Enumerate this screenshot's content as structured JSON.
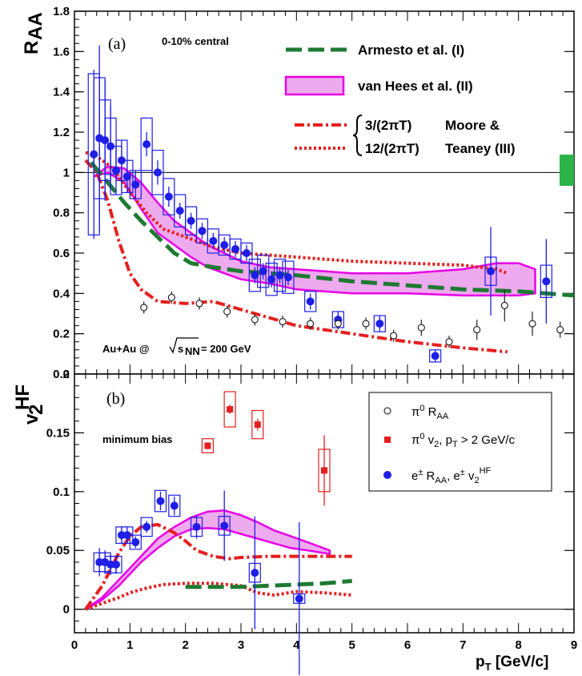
{
  "chart_data": [
    {
      "type": "scatter",
      "panel_label": "(a)",
      "ylabel": "R",
      "ylabel_sub": "AA",
      "ylim": [
        0,
        1.8
      ],
      "yticks": [
        "0",
        "0.2",
        "0.4",
        "0.6",
        "0.8",
        "1",
        "1.2",
        "1.4",
        "1.6",
        "1.8"
      ],
      "xlim": [
        0,
        9
      ],
      "annotation_centrality": "0-10% central",
      "annotation_system": "Au+Au @",
      "annotation_energy": "= 200 GeV",
      "annotation_sqrt_s": "s",
      "annotation_sqrt_sub": "NN",
      "reference_line": 1,
      "legend": {
        "armesto": "Armesto et al. (I)",
        "vanhees": "van Hees et al. (II)",
        "moore_a": "3/(2πT)",
        "moore_b": "12/(2πT)",
        "moore_name_a": "Moore &",
        "moore_name_b": "Teaney (III)"
      },
      "series": [
        {
          "name": "e± RAA",
          "marker": "filled-circle",
          "color": "#1e1ee6",
          "points": [
            {
              "x": 0.35,
              "y": 1.09,
              "err": 0.42,
              "sys": 0.4
            },
            {
              "x": 0.45,
              "y": 1.17,
              "err": 0.46,
              "sys": 0.3
            },
            {
              "x": 0.55,
              "y": 1.16,
              "err": 0.3,
              "sys": 0.2
            },
            {
              "x": 0.65,
              "y": 1.13,
              "err": 0.2,
              "sys": 0.14
            },
            {
              "x": 0.75,
              "y": 1.01,
              "err": 0.12,
              "sys": 0.12
            },
            {
              "x": 0.85,
              "y": 1.06,
              "err": 0.1,
              "sys": 0.1
            },
            {
              "x": 0.95,
              "y": 0.98,
              "err": 0.08,
              "sys": 0.08
            },
            {
              "x": 1.1,
              "y": 0.94,
              "err": 0.07,
              "sys": 0.07
            },
            {
              "x": 1.3,
              "y": 1.14,
              "err": 0.06,
              "sys": 0.13
            },
            {
              "x": 1.5,
              "y": 1.0,
              "err": 0.06,
              "sys": 0.11
            },
            {
              "x": 1.7,
              "y": 0.88,
              "err": 0.05,
              "sys": 0.09
            },
            {
              "x": 1.9,
              "y": 0.81,
              "err": 0.04,
              "sys": 0.08
            },
            {
              "x": 2.1,
              "y": 0.76,
              "err": 0.04,
              "sys": 0.07
            },
            {
              "x": 2.3,
              "y": 0.71,
              "err": 0.04,
              "sys": 0.06
            },
            {
              "x": 2.5,
              "y": 0.66,
              "err": 0.04,
              "sys": 0.06
            },
            {
              "x": 2.7,
              "y": 0.64,
              "err": 0.04,
              "sys": 0.05
            },
            {
              "x": 2.9,
              "y": 0.62,
              "err": 0.04,
              "sys": 0.05
            },
            {
              "x": 3.1,
              "y": 0.6,
              "err": 0.04,
              "sys": 0.05
            },
            {
              "x": 3.25,
              "y": 0.49,
              "err": 0.04,
              "sys": 0.08
            },
            {
              "x": 3.4,
              "y": 0.51,
              "err": 0.04,
              "sys": 0.08
            },
            {
              "x": 3.55,
              "y": 0.47,
              "err": 0.04,
              "sys": 0.08
            },
            {
              "x": 3.7,
              "y": 0.49,
              "err": 0.04,
              "sys": 0.08
            },
            {
              "x": 3.85,
              "y": 0.48,
              "err": 0.04,
              "sys": 0.08
            },
            {
              "x": 4.25,
              "y": 0.36,
              "err": 0.04,
              "sys": 0.05
            },
            {
              "x": 4.75,
              "y": 0.27,
              "err": 0.04,
              "sys": 0.04
            },
            {
              "x": 5.5,
              "y": 0.25,
              "err": 0.04,
              "sys": 0.04
            },
            {
              "x": 6.5,
              "y": 0.09,
              "err": 0.03,
              "sys": 0.03
            },
            {
              "x": 7.5,
              "y": 0.51,
              "err": 0.22,
              "sys": 0.07
            },
            {
              "x": 8.5,
              "y": 0.46,
              "err": 0.21,
              "sys": 0.08
            }
          ]
        },
        {
          "name": "π0 RAA",
          "marker": "open-circle",
          "color": "#000000",
          "points": [
            {
              "x": 1.25,
              "y": 0.33,
              "err": 0.03
            },
            {
              "x": 1.75,
              "y": 0.38,
              "err": 0.03
            },
            {
              "x": 2.25,
              "y": 0.35,
              "err": 0.03
            },
            {
              "x": 2.75,
              "y": 0.31,
              "err": 0.03
            },
            {
              "x": 3.25,
              "y": 0.27,
              "err": 0.03
            },
            {
              "x": 3.75,
              "y": 0.26,
              "err": 0.03
            },
            {
              "x": 4.25,
              "y": 0.25,
              "err": 0.03
            },
            {
              "x": 4.75,
              "y": 0.25,
              "err": 0.03
            },
            {
              "x": 5.25,
              "y": 0.25,
              "err": 0.03
            },
            {
              "x": 5.75,
              "y": 0.19,
              "err": 0.03
            },
            {
              "x": 6.25,
              "y": 0.23,
              "err": 0.04
            },
            {
              "x": 6.75,
              "y": 0.16,
              "err": 0.03
            },
            {
              "x": 7.25,
              "y": 0.22,
              "err": 0.05
            },
            {
              "x": 7.75,
              "y": 0.34,
              "err": 0.08
            },
            {
              "x": 8.25,
              "y": 0.25,
              "err": 0.06
            },
            {
              "x": 8.75,
              "y": 0.22,
              "err": 0.04
            }
          ]
        }
      ],
      "curves": {
        "armesto": {
          "x": [
            0.3,
            0.6,
            0.9,
            1.2,
            1.5,
            1.8,
            2.1,
            2.5,
            3.0,
            3.5,
            4.0,
            5.0,
            6.0,
            7.0,
            8.0,
            9.0
          ],
          "y": [
            1.05,
            0.95,
            0.85,
            0.76,
            0.68,
            0.6,
            0.55,
            0.53,
            0.51,
            0.5,
            0.49,
            0.46,
            0.44,
            0.42,
            0.41,
            0.39
          ]
        },
        "vanhees_upper": {
          "x": [
            0.35,
            0.6,
            0.9,
            1.2,
            1.5,
            1.8,
            2.1,
            2.4,
            2.7,
            3.0,
            3.5,
            4.0,
            5.0,
            6.0,
            7.0,
            7.6,
            8.0,
            8.3
          ],
          "y": [
            0.98,
            1.03,
            1.02,
            0.95,
            0.85,
            0.76,
            0.7,
            0.64,
            0.6,
            0.56,
            0.53,
            0.52,
            0.5,
            0.5,
            0.52,
            0.55,
            0.55,
            0.52
          ]
        },
        "vanhees_lower": {
          "x": [
            0.35,
            0.6,
            0.9,
            1.2,
            1.5,
            1.8,
            2.1,
            2.4,
            2.7,
            3.0,
            3.5,
            4.0,
            5.0,
            6.0,
            7.0,
            7.6,
            8.0,
            8.3
          ],
          "y": [
            0.98,
            1.0,
            0.95,
            0.82,
            0.7,
            0.64,
            0.58,
            0.53,
            0.5,
            0.47,
            0.45,
            0.42,
            0.4,
            0.4,
            0.39,
            0.39,
            0.39,
            0.4
          ]
        },
        "moore_dashdot": {
          "x": [
            0.2,
            0.4,
            0.6,
            0.8,
            1.0,
            1.2,
            1.5,
            2.0,
            2.5,
            3.0,
            3.5,
            4.0,
            5.0,
            6.0,
            7.0,
            7.8
          ],
          "y": [
            1.06,
            1.0,
            0.86,
            0.66,
            0.5,
            0.42,
            0.36,
            0.35,
            0.36,
            0.32,
            0.28,
            0.24,
            0.2,
            0.16,
            0.13,
            0.11
          ]
        },
        "moore_dotted": {
          "x": [
            0.2,
            0.4,
            0.6,
            0.8,
            1.0,
            1.3,
            1.6,
            2.0,
            2.5,
            3.0,
            3.5,
            4.0,
            4.5,
            5.0,
            6.0,
            7.0,
            7.6,
            7.8
          ],
          "y": [
            1.1,
            1.08,
            1.04,
            0.98,
            0.9,
            0.8,
            0.72,
            0.68,
            0.63,
            0.6,
            0.59,
            0.58,
            0.57,
            0.56,
            0.55,
            0.54,
            0.52,
            0.5
          ]
        }
      }
    },
    {
      "type": "scatter",
      "panel_label": "(b)",
      "ylabel": "v",
      "ylabel_sub": "2",
      "ylabel_sup": "HF",
      "ylim": [
        -0.02,
        0.2
      ],
      "yticks": [
        "0",
        "0.05",
        "0.1",
        "0.15",
        "0.2"
      ],
      "xlim": [
        0,
        9
      ],
      "xticks": [
        "0",
        "1",
        "2",
        "3",
        "4",
        "5",
        "6",
        "7",
        "8",
        "9"
      ],
      "xlabel": "p",
      "xlabel_sub": "T",
      "xlabel_unit": " [GeV/c]",
      "annotation": "minimum bias",
      "reference_line": 0,
      "legend": {
        "pi0_raa": "π",
        "pi0_raa_sup": "0",
        "pi0_raa_rest": " R",
        "pi0_raa_sub": "AA",
        "pi0_v2": "π",
        "pi0_v2_sup": "0",
        "pi0_v2_mid": " v",
        "pi0_v2_sub": "2",
        "pi0_v2_rest": ", p",
        "pi0_v2_sub2": "T",
        "pi0_v2_tail": " > 2 GeV/c",
        "e_label": "e",
        "e_sup": "±",
        "e_raa": " R",
        "e_raa_sub": "AA",
        "e_v2": ", e",
        "e_v2_sup": "±",
        "e_v2_v": " v",
        "e_v2_sub": "2",
        "e_v2_sup2": "HF"
      },
      "series": [
        {
          "name": "e± v2HF",
          "marker": "filled-circle",
          "color": "#1e1ee6",
          "points": [
            {
              "x": 0.45,
              "y": 0.04,
              "err": 0.012,
              "sys": 0.008
            },
            {
              "x": 0.55,
              "y": 0.04,
              "err": 0.01,
              "sys": 0.008
            },
            {
              "x": 0.65,
              "y": 0.038,
              "err": 0.009,
              "sys": 0.007
            },
            {
              "x": 0.75,
              "y": 0.038,
              "err": 0.008,
              "sys": 0.007
            },
            {
              "x": 0.85,
              "y": 0.063,
              "err": 0.007,
              "sys": 0.007
            },
            {
              "x": 0.95,
              "y": 0.063,
              "err": 0.006,
              "sys": 0.007
            },
            {
              "x": 1.1,
              "y": 0.057,
              "err": 0.005,
              "sys": 0.006
            },
            {
              "x": 1.3,
              "y": 0.07,
              "err": 0.005,
              "sys": 0.008
            },
            {
              "x": 1.55,
              "y": 0.092,
              "err": 0.008,
              "sys": 0.009
            },
            {
              "x": 1.8,
              "y": 0.088,
              "err": 0.008,
              "sys": 0.009
            },
            {
              "x": 2.2,
              "y": 0.07,
              "err": 0.01,
              "sys": 0.008
            },
            {
              "x": 2.7,
              "y": 0.071,
              "err": 0.03,
              "sys": 0.008
            },
            {
              "x": 3.25,
              "y": 0.031,
              "err": 0.048,
              "sys": 0.008
            },
            {
              "x": 4.05,
              "y": 0.009,
              "err": 0.065,
              "sys": 0.004
            }
          ]
        },
        {
          "name": "π0 v2, pT > 2 GeV/c",
          "marker": "filled-square",
          "color": "#e61e1e",
          "points": [
            {
              "x": 2.4,
              "y": 0.139,
              "err": 0.003,
              "sys": 0.006
            },
            {
              "x": 2.8,
              "y": 0.17,
              "err": 0.004,
              "sys": 0.015
            },
            {
              "x": 3.3,
              "y": 0.157,
              "err": 0.005,
              "sys": 0.012
            },
            {
              "x": 4.5,
              "y": 0.118,
              "err": 0.03,
              "sys": 0.018
            }
          ]
        }
      ],
      "curves": {
        "armesto": {
          "x": [
            2.0,
            2.5,
            3.0,
            3.5,
            4.0,
            4.5,
            5.0
          ],
          "y": [
            0.019,
            0.019,
            0.019,
            0.02,
            0.021,
            0.022,
            0.024
          ]
        },
        "vanhees_upper": {
          "x": [
            0.2,
            0.5,
            0.8,
            1.0,
            1.2,
            1.5,
            1.8,
            2.1,
            2.4,
            2.7,
            3.0,
            3.3,
            3.6,
            3.9,
            4.2,
            4.6
          ],
          "y": [
            0.0,
            0.01,
            0.025,
            0.035,
            0.045,
            0.06,
            0.07,
            0.078,
            0.083,
            0.084,
            0.08,
            0.074,
            0.067,
            0.062,
            0.057,
            0.05
          ]
        },
        "vanhees_lower": {
          "x": [
            0.2,
            0.5,
            0.8,
            1.0,
            1.2,
            1.5,
            1.8,
            2.1,
            2.4,
            2.7,
            3.0,
            3.3,
            3.6,
            3.9,
            4.2,
            4.6
          ],
          "y": [
            0.0,
            0.008,
            0.02,
            0.03,
            0.04,
            0.052,
            0.062,
            0.068,
            0.069,
            0.068,
            0.064,
            0.06,
            0.056,
            0.052,
            0.05,
            0.047
          ]
        },
        "moore_dashdot": {
          "x": [
            0.2,
            0.5,
            0.8,
            1.0,
            1.2,
            1.5,
            1.8,
            2.0,
            2.2,
            2.5,
            2.8,
            3.0,
            3.5,
            4.0,
            4.5,
            5.0
          ],
          "y": [
            0.0,
            0.02,
            0.048,
            0.062,
            0.07,
            0.072,
            0.065,
            0.058,
            0.05,
            0.045,
            0.043,
            0.044,
            0.045,
            0.045,
            0.045,
            0.045
          ]
        },
        "moore_dotted": {
          "x": [
            0.2,
            0.5,
            0.8,
            1.0,
            1.3,
            1.6,
            2.0,
            2.5,
            3.0,
            3.3,
            3.6,
            4.0,
            4.5,
            5.0
          ],
          "y": [
            0.0,
            0.005,
            0.01,
            0.014,
            0.018,
            0.021,
            0.022,
            0.022,
            0.02,
            0.014,
            0.012,
            0.015,
            0.014,
            0.012
          ]
        }
      }
    }
  ]
}
